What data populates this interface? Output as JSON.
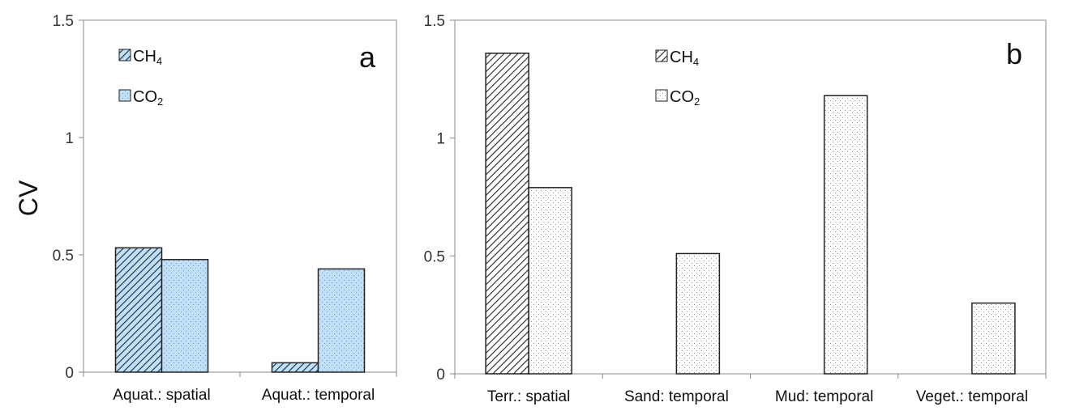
{
  "y_axis_label": "CV",
  "chart_data": [
    {
      "type": "bar",
      "panel_label": "a",
      "categories": [
        "Aquat.: spatial",
        "Aquat.: temporal"
      ],
      "series": [
        {
          "name": "CH4",
          "values": [
            0.53,
            0.04
          ],
          "fill_color": "#bfe0f8",
          "pattern": "diagonal-hatch"
        },
        {
          "name": "CO2",
          "values": [
            0.48,
            0.44
          ],
          "fill_color": "#bfe0f8",
          "pattern": "dots"
        }
      ],
      "ylim": [
        0,
        1.5
      ],
      "yticks": [
        "0",
        "0.5",
        "1",
        "1.5"
      ],
      "ylabel": "CV",
      "legend_position": "top-left"
    },
    {
      "type": "bar",
      "panel_label": "b",
      "categories": [
        "Terr.: spatial",
        "Sand: temporal",
        "Mud: temporal",
        "Veget.: temporal"
      ],
      "series": [
        {
          "name": "CH4",
          "values": [
            1.36,
            null,
            null,
            null
          ],
          "fill_color": "#ffffff",
          "pattern": "diagonal-hatch"
        },
        {
          "name": "CO2",
          "values": [
            0.79,
            0.51,
            1.18,
            0.3
          ],
          "fill_color": "#ffffff",
          "pattern": "dots"
        }
      ],
      "ylim": [
        0,
        1.5
      ],
      "yticks": [
        "0",
        "0.5",
        "1",
        "1.5"
      ],
      "legend_position": "top-center"
    }
  ]
}
